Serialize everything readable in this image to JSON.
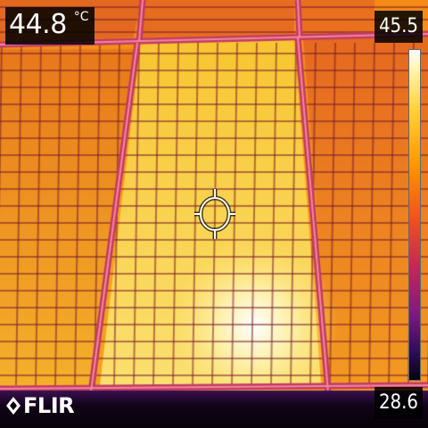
{
  "spot_meter": {
    "value": "44.8",
    "unit": "°C"
  },
  "scale": {
    "max": "45.5",
    "min": "28.6"
  },
  "brand": {
    "name": "FLIR"
  },
  "icons": {
    "crosshair": "crosshair-icon",
    "logo_mark": "flir-diamond-icon"
  },
  "palette": [
    "#05020e",
    "#2a0c5a",
    "#7c1a86",
    "#c42658",
    "#f2561a",
    "#ff9a00",
    "#ffd23a",
    "#fff4b0",
    "#ffffff"
  ]
}
